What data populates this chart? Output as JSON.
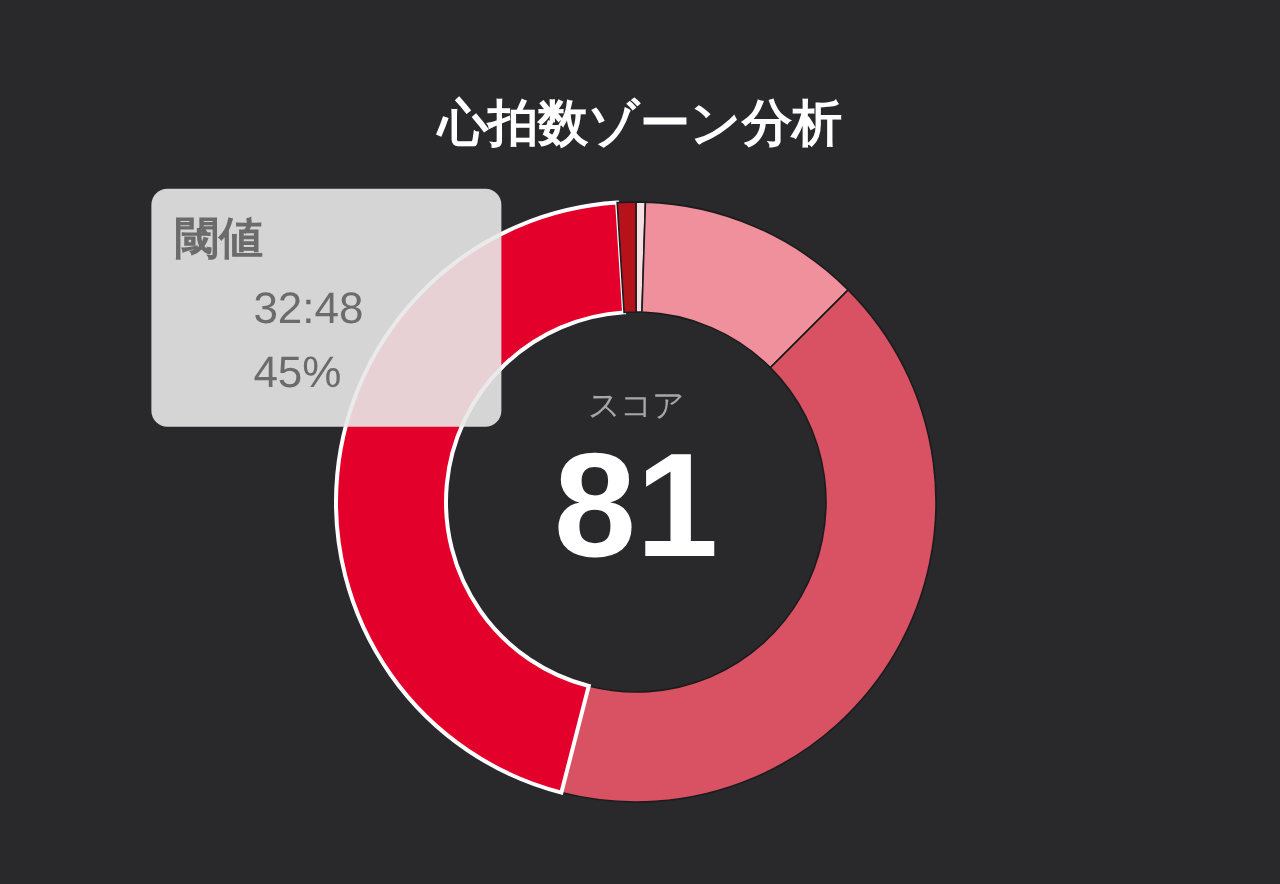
{
  "chart_data": {
    "type": "donut",
    "title": "心拍数ゾーン分析",
    "categories": [
      null,
      null,
      null,
      "閾値",
      null
    ],
    "values": [
      0.5,
      12,
      41.5,
      45,
      1
    ],
    "colors": [
      "#f5dfe3",
      "#f0909c",
      "#d95263",
      "#e3002b",
      "#b5121b"
    ],
    "value_labels": [
      null,
      null,
      null,
      "45%",
      null
    ],
    "annotations": [
      "スコア",
      "81",
      "32:48"
    ]
  }
}
